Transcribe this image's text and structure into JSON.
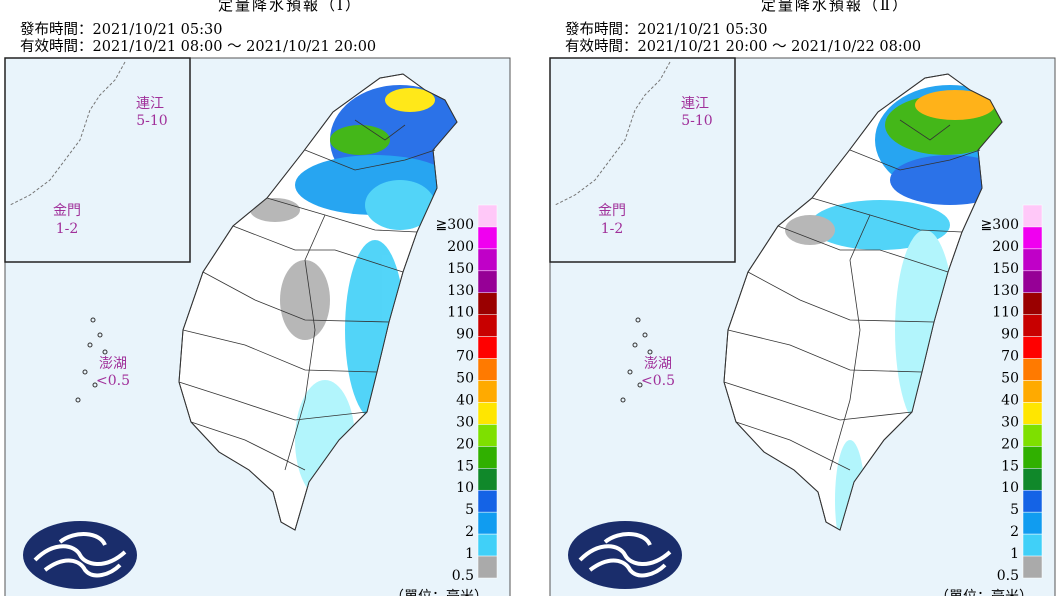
{
  "panels": [
    {
      "title": "定量降水預報（Ⅰ）",
      "issued": "發布時間：2021/10/21 05:30",
      "valid": "有效時間：2021/10/21 08:00 ～ 2021/10/21 20:00",
      "matsu": {
        "name": "連江",
        "amount": "5-10"
      },
      "kinmen": {
        "name": "金門",
        "amount": "1-2"
      },
      "penghu": {
        "name": "澎湖",
        "amount": "<0.5"
      },
      "legend": [
        {
          "label": "≧300",
          "color": "#ffc8f8"
        },
        {
          "label": 200,
          "color": "#f000f0"
        },
        {
          "label": 150,
          "color": "#c000c8"
        },
        {
          "label": 130,
          "color": "#960096"
        },
        {
          "label": 110,
          "color": "#9a0000"
        },
        {
          "label": 90,
          "color": "#c80000"
        },
        {
          "label": 70,
          "color": "#ff0000"
        },
        {
          "label": 50,
          "color": "#ff7a00"
        },
        {
          "label": 40,
          "color": "#ffaa00"
        },
        {
          "label": 30,
          "color": "#ffe600"
        },
        {
          "label": 20,
          "color": "#7ee000"
        },
        {
          "label": 15,
          "color": "#30b000"
        },
        {
          "label": 10,
          "color": "#10882a"
        },
        {
          "label": 5,
          "color": "#1463e6"
        },
        {
          "label": 2,
          "color": "#109cf0"
        },
        {
          "label": 1,
          "color": "#40d0f8"
        },
        {
          "label": 0.5,
          "color": "#aaf4fc"
        }
      ],
      "unit": "（單位：毫米）"
    },
    {
      "title": "定量降水預報（Ⅱ）",
      "issued": "發布時間：2021/10/21 05:30",
      "valid": "有效時間：2021/10/21 20:00 ～ 2021/10/22 08:00",
      "matsu": {
        "name": "連江",
        "amount": "5-10"
      },
      "kinmen": {
        "name": "金門",
        "amount": "1-2"
      },
      "penghu": {
        "name": "澎湖",
        "amount": "<0.5"
      },
      "legend": [
        {
          "label": "≧300",
          "color": "#ffc8f8"
        },
        {
          "label": 200,
          "color": "#f000f0"
        },
        {
          "label": 150,
          "color": "#c000c8"
        },
        {
          "label": 130,
          "color": "#960096"
        },
        {
          "label": 110,
          "color": "#9a0000"
        },
        {
          "label": 90,
          "color": "#c80000"
        },
        {
          "label": 70,
          "color": "#ff0000"
        },
        {
          "label": 50,
          "color": "#ff7a00"
        },
        {
          "label": 40,
          "color": "#ffaa00"
        },
        {
          "label": 30,
          "color": "#ffe600"
        },
        {
          "label": 20,
          "color": "#7ee000"
        },
        {
          "label": 15,
          "color": "#30b000"
        },
        {
          "label": 10,
          "color": "#10882a"
        },
        {
          "label": 5,
          "color": "#1463e6"
        },
        {
          "label": 2,
          "color": "#109cf0"
        },
        {
          "label": 1,
          "color": "#40d0f8"
        },
        {
          "label": 0.5,
          "color": "#aaf4fc"
        }
      ],
      "unit": "（單位：毫米）"
    }
  ]
}
